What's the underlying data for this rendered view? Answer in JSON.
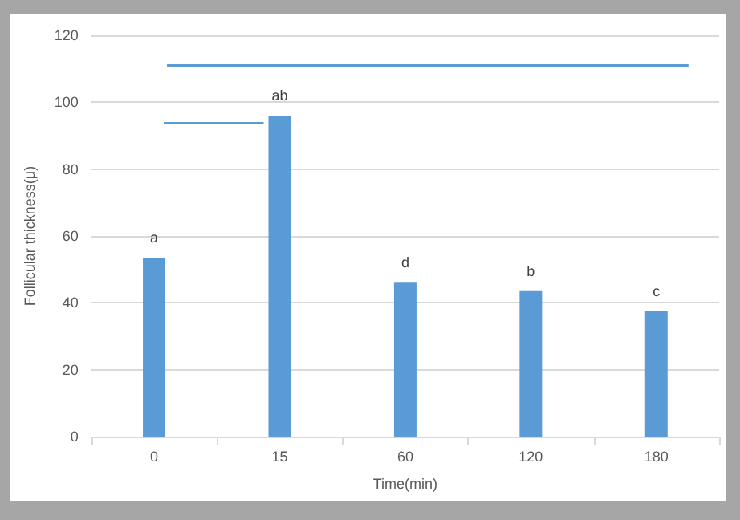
{
  "chart_data": {
    "type": "bar",
    "xlabel": "Time(min)",
    "ylabel": "Follicular thickness(μ)",
    "categories": [
      "0",
      "15",
      "60",
      "120",
      "180"
    ],
    "values": [
      53.5,
      96,
      46,
      43.5,
      37.5
    ],
    "value_labels": [
      "a",
      "ab",
      "d",
      "b",
      "c"
    ],
    "color": "#5b9bd5",
    "ylim": [
      0,
      120
    ],
    "yticks": [
      0,
      20,
      40,
      60,
      80,
      100,
      120
    ],
    "ref_lines": [
      {
        "axis": "y",
        "value": 111
      },
      {
        "axis": "y",
        "value": 94
      }
    ],
    "grid": "y"
  }
}
